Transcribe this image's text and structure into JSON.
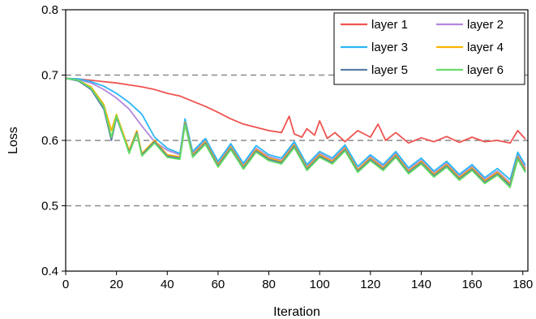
{
  "chart_data": {
    "type": "line",
    "xlabel": "Iteration",
    "ylabel": "Loss",
    "xlim": [
      0,
      182
    ],
    "ylim": [
      0.4,
      0.8
    ],
    "xticks": [
      "0",
      "20",
      "40",
      "60",
      "80",
      "100",
      "120",
      "140",
      "160",
      "180"
    ],
    "yticks": [
      "0.4",
      "0.5",
      "0.6",
      "0.7",
      "0.8"
    ],
    "reference_lines": [
      0.5,
      0.6,
      0.7
    ],
    "legend_position": "top-right",
    "series": [
      {
        "name": "layer 1",
        "color": "#ef5350",
        "x": [
          0,
          5,
          10,
          15,
          20,
          25,
          30,
          35,
          40,
          45,
          50,
          55,
          60,
          65,
          70,
          75,
          80,
          85,
          88,
          90,
          93,
          95,
          98,
          100,
          103,
          106,
          110,
          115,
          120,
          123,
          126,
          130,
          135,
          140,
          145,
          150,
          155,
          160,
          165,
          170,
          175,
          178,
          181
        ],
        "y": [
          0.695,
          0.694,
          0.692,
          0.69,
          0.688,
          0.685,
          0.682,
          0.678,
          0.672,
          0.668,
          0.66,
          0.652,
          0.643,
          0.633,
          0.625,
          0.62,
          0.615,
          0.612,
          0.637,
          0.61,
          0.605,
          0.618,
          0.608,
          0.63,
          0.603,
          0.612,
          0.598,
          0.615,
          0.605,
          0.625,
          0.6,
          0.612,
          0.596,
          0.604,
          0.598,
          0.606,
          0.597,
          0.605,
          0.598,
          0.6,
          0.596,
          0.615,
          0.602
        ]
      },
      {
        "name": "layer 2",
        "color": "#b388dd",
        "x": [
          0,
          5,
          10,
          15,
          20,
          25,
          30,
          35,
          40,
          45,
          47,
          50,
          55,
          60,
          65,
          70,
          75,
          80,
          85,
          90,
          95,
          100,
          105,
          110,
          115,
          120,
          125,
          130,
          135,
          140,
          145,
          150,
          155,
          160,
          165,
          170,
          175,
          178,
          181
        ],
        "y": [
          0.695,
          0.693,
          0.688,
          0.678,
          0.665,
          0.648,
          0.622,
          0.598,
          0.585,
          0.578,
          0.63,
          0.58,
          0.6,
          0.565,
          0.592,
          0.562,
          0.588,
          0.575,
          0.57,
          0.595,
          0.56,
          0.58,
          0.57,
          0.59,
          0.556,
          0.575,
          0.56,
          0.58,
          0.555,
          0.57,
          0.55,
          0.565,
          0.545,
          0.56,
          0.54,
          0.553,
          0.535,
          0.578,
          0.558
        ]
      },
      {
        "name": "layer 3",
        "color": "#29b6f6",
        "x": [
          0,
          5,
          10,
          15,
          20,
          25,
          30,
          35,
          40,
          45,
          47,
          50,
          55,
          60,
          65,
          70,
          75,
          80,
          85,
          90,
          95,
          100,
          105,
          110,
          115,
          120,
          125,
          130,
          135,
          140,
          145,
          150,
          155,
          160,
          165,
          170,
          175,
          178,
          181
        ],
        "y": [
          0.695,
          0.694,
          0.69,
          0.683,
          0.672,
          0.658,
          0.64,
          0.605,
          0.588,
          0.58,
          0.633,
          0.583,
          0.603,
          0.568,
          0.595,
          0.565,
          0.592,
          0.578,
          0.573,
          0.598,
          0.563,
          0.583,
          0.573,
          0.593,
          0.56,
          0.578,
          0.563,
          0.583,
          0.558,
          0.573,
          0.553,
          0.568,
          0.548,
          0.563,
          0.543,
          0.557,
          0.54,
          0.582,
          0.562
        ]
      },
      {
        "name": "layer 4",
        "color": "#ffb300",
        "x": [
          0,
          5,
          10,
          15,
          18,
          20,
          25,
          28,
          30,
          35,
          40,
          45,
          47,
          50,
          55,
          60,
          65,
          70,
          75,
          80,
          85,
          90,
          95,
          100,
          105,
          110,
          115,
          120,
          125,
          130,
          135,
          140,
          145,
          150,
          155,
          160,
          165,
          170,
          175,
          178,
          181
        ],
        "y": [
          0.695,
          0.692,
          0.682,
          0.655,
          0.615,
          0.64,
          0.585,
          0.615,
          0.58,
          0.6,
          0.578,
          0.575,
          0.628,
          0.578,
          0.598,
          0.563,
          0.59,
          0.56,
          0.586,
          0.573,
          0.568,
          0.593,
          0.558,
          0.578,
          0.568,
          0.588,
          0.555,
          0.573,
          0.558,
          0.578,
          0.553,
          0.568,
          0.548,
          0.563,
          0.543,
          0.558,
          0.538,
          0.551,
          0.533,
          0.575,
          0.555
        ]
      },
      {
        "name": "layer 5",
        "color": "#5b7fa6",
        "x": [
          0,
          5,
          10,
          15,
          18,
          20,
          25,
          28,
          30,
          35,
          40,
          45,
          47,
          50,
          55,
          60,
          65,
          70,
          75,
          80,
          85,
          90,
          95,
          100,
          105,
          110,
          115,
          120,
          125,
          130,
          135,
          140,
          145,
          150,
          155,
          160,
          165,
          170,
          175,
          178,
          181
        ],
        "y": [
          0.695,
          0.691,
          0.678,
          0.648,
          0.6,
          0.635,
          0.582,
          0.612,
          0.578,
          0.598,
          0.576,
          0.573,
          0.626,
          0.576,
          0.596,
          0.561,
          0.588,
          0.558,
          0.584,
          0.571,
          0.566,
          0.591,
          0.556,
          0.576,
          0.566,
          0.586,
          0.553,
          0.571,
          0.556,
          0.576,
          0.551,
          0.566,
          0.546,
          0.561,
          0.541,
          0.556,
          0.536,
          0.549,
          0.531,
          0.573,
          0.553
        ]
      },
      {
        "name": "layer 6",
        "color": "#66dd66",
        "x": [
          0,
          5,
          10,
          15,
          18,
          20,
          25,
          28,
          30,
          35,
          40,
          45,
          47,
          50,
          55,
          60,
          65,
          70,
          75,
          80,
          85,
          90,
          95,
          100,
          105,
          110,
          115,
          120,
          125,
          130,
          135,
          140,
          145,
          150,
          155,
          160,
          165,
          170,
          175,
          178,
          181
        ],
        "y": [
          0.695,
          0.692,
          0.68,
          0.652,
          0.605,
          0.638,
          0.58,
          0.61,
          0.576,
          0.596,
          0.574,
          0.571,
          0.624,
          0.574,
          0.594,
          0.559,
          0.586,
          0.556,
          0.582,
          0.569,
          0.564,
          0.589,
          0.554,
          0.574,
          0.564,
          0.584,
          0.551,
          0.569,
          0.554,
          0.574,
          0.549,
          0.564,
          0.544,
          0.559,
          0.539,
          0.554,
          0.534,
          0.547,
          0.528,
          0.571,
          0.551
        ]
      }
    ]
  }
}
